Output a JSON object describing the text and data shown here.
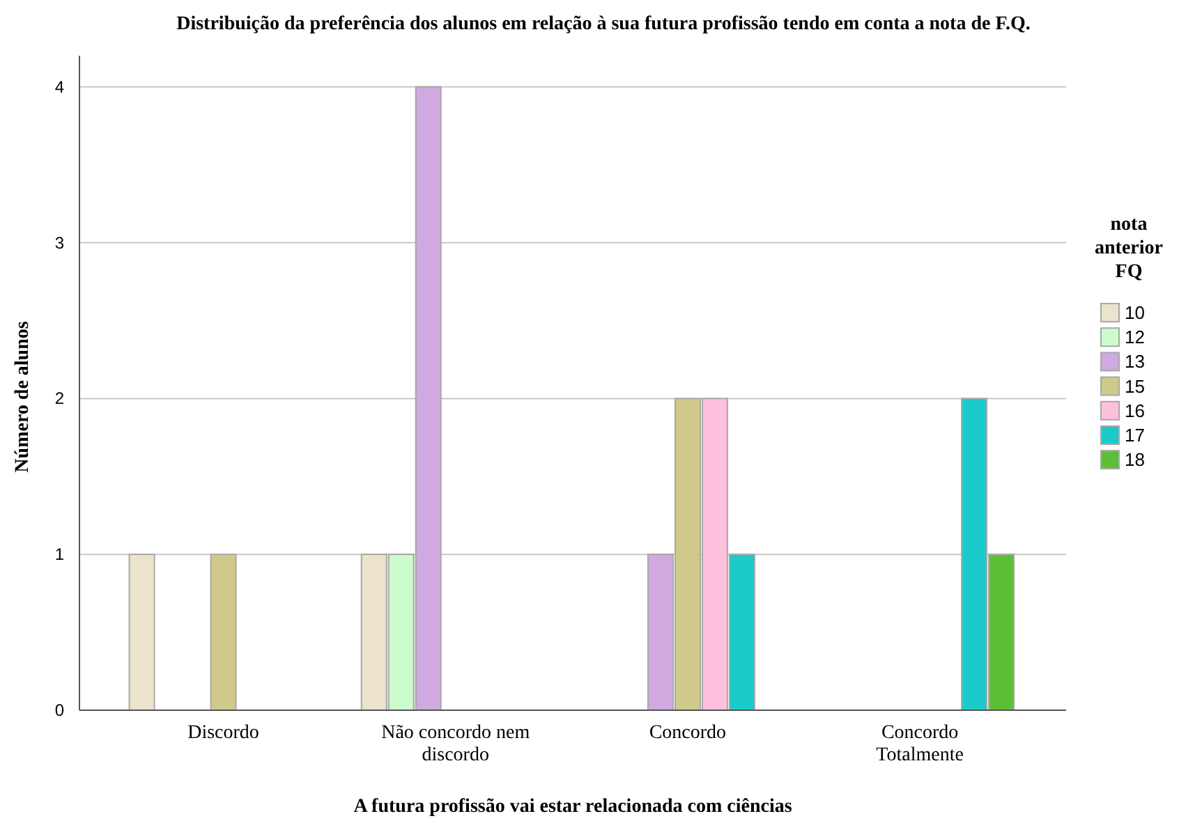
{
  "chart_data": {
    "type": "bar",
    "title": "Distribuição da preferência dos alunos em relação à sua futura profissão tendo em conta a nota de F.Q.",
    "xlabel": "A futura profissão vai estar relacionada com ciências",
    "ylabel": "Número de alunos",
    "legend_title": "nota anterior FQ",
    "categories": [
      "Discordo",
      "Não concordo nem discordo",
      "Concordo",
      "Concordo Totalmente"
    ],
    "series": [
      {
        "name": "10",
        "color": "#ebe3cc",
        "values": [
          1,
          1,
          0,
          0
        ]
      },
      {
        "name": "12",
        "color": "#ccfccc",
        "values": [
          0,
          1,
          0,
          0
        ]
      },
      {
        "name": "13",
        "color": "#cfa9e0",
        "values": [
          0,
          4,
          1,
          0
        ]
      },
      {
        "name": "15",
        "color": "#cfc98c",
        "values": [
          1,
          0,
          2,
          0
        ]
      },
      {
        "name": "16",
        "color": "#fdc0dd",
        "values": [
          0,
          0,
          2,
          0
        ]
      },
      {
        "name": "17",
        "color": "#1bcbcb",
        "values": [
          0,
          0,
          1,
          2
        ]
      },
      {
        "name": "18",
        "color": "#5dbf36",
        "values": [
          0,
          0,
          0,
          1
        ]
      }
    ],
    "ylim": [
      0,
      4.2
    ],
    "yticks": [
      0,
      1,
      2,
      3,
      4
    ],
    "grid": "y",
    "legend": "right"
  }
}
